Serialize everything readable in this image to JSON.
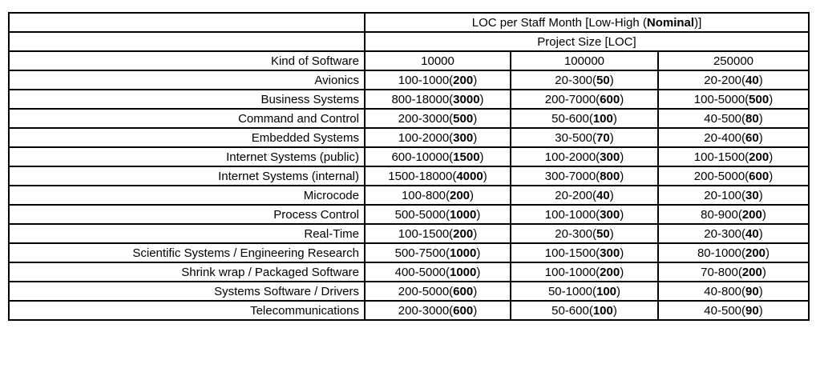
{
  "title": {
    "prefix": "LOC per Staff Month [Low-High (",
    "bold": "Nominal",
    "suffix": ")]"
  },
  "subtitle": "Project Size [LOC]",
  "chart_data": {
    "type": "table",
    "title": "LOC per Staff Month [Low-High (Nominal)]",
    "subtitle": "Project Size [LOC]",
    "row_header": "Kind of Software",
    "columns": [
      "10000",
      "100000",
      "250000"
    ],
    "rows": [
      {
        "kind": "Avionics",
        "cells": [
          {
            "low": 100,
            "high": 1000,
            "nominal": 200
          },
          {
            "low": 20,
            "high": 300,
            "nominal": 50
          },
          {
            "low": 20,
            "high": 200,
            "nominal": 40
          }
        ]
      },
      {
        "kind": "Business Systems",
        "cells": [
          {
            "low": 800,
            "high": 18000,
            "nominal": 3000
          },
          {
            "low": 200,
            "high": 7000,
            "nominal": 600
          },
          {
            "low": 100,
            "high": 5000,
            "nominal": 500
          }
        ]
      },
      {
        "kind": "Command and Control",
        "cells": [
          {
            "low": 200,
            "high": 3000,
            "nominal": 500
          },
          {
            "low": 50,
            "high": 600,
            "nominal": 100
          },
          {
            "low": 40,
            "high": 500,
            "nominal": 80
          }
        ]
      },
      {
        "kind": "Embedded Systems",
        "cells": [
          {
            "low": 100,
            "high": 2000,
            "nominal": 300
          },
          {
            "low": 30,
            "high": 500,
            "nominal": 70
          },
          {
            "low": 20,
            "high": 400,
            "nominal": 60
          }
        ]
      },
      {
        "kind": "Internet Systems (public)",
        "cells": [
          {
            "low": 600,
            "high": 10000,
            "nominal": 1500
          },
          {
            "low": 100,
            "high": 2000,
            "nominal": 300
          },
          {
            "low": 100,
            "high": 1500,
            "nominal": 200
          }
        ]
      },
      {
        "kind": "Internet Systems (internal)",
        "cells": [
          {
            "low": 1500,
            "high": 18000,
            "nominal": 4000
          },
          {
            "low": 300,
            "high": 7000,
            "nominal": 800
          },
          {
            "low": 200,
            "high": 5000,
            "nominal": 600
          }
        ]
      },
      {
        "kind": "Microcode",
        "cells": [
          {
            "low": 100,
            "high": 800,
            "nominal": 200
          },
          {
            "low": 20,
            "high": 200,
            "nominal": 40
          },
          {
            "low": 20,
            "high": 100,
            "nominal": 30
          }
        ]
      },
      {
        "kind": "Process Control",
        "cells": [
          {
            "low": 500,
            "high": 5000,
            "nominal": 1000
          },
          {
            "low": 100,
            "high": 1000,
            "nominal": 300
          },
          {
            "low": 80,
            "high": 900,
            "nominal": 200
          }
        ]
      },
      {
        "kind": "Real-Time",
        "cells": [
          {
            "low": 100,
            "high": 1500,
            "nominal": 200
          },
          {
            "low": 20,
            "high": 300,
            "nominal": 50
          },
          {
            "low": 20,
            "high": 300,
            "nominal": 40
          }
        ]
      },
      {
        "kind": "Scientific Systems / Engineering Research",
        "cells": [
          {
            "low": 500,
            "high": 7500,
            "nominal": 1000
          },
          {
            "low": 100,
            "high": 1500,
            "nominal": 300
          },
          {
            "low": 80,
            "high": 1000,
            "nominal": 200
          }
        ]
      },
      {
        "kind": "Shrink wrap / Packaged Software",
        "cells": [
          {
            "low": 400,
            "high": 5000,
            "nominal": 1000
          },
          {
            "low": 100,
            "high": 1000,
            "nominal": 200
          },
          {
            "low": 70,
            "high": 800,
            "nominal": 200
          }
        ]
      },
      {
        "kind": "Systems Software / Drivers",
        "cells": [
          {
            "low": 200,
            "high": 5000,
            "nominal": 600
          },
          {
            "low": 50,
            "high": 1000,
            "nominal": 100
          },
          {
            "low": 40,
            "high": 800,
            "nominal": 90
          }
        ]
      },
      {
        "kind": "Telecommunications",
        "cells": [
          {
            "low": 200,
            "high": 3000,
            "nominal": 600
          },
          {
            "low": 50,
            "high": 600,
            "nominal": 100
          },
          {
            "low": 40,
            "high": 500,
            "nominal": 90
          }
        ]
      }
    ]
  }
}
